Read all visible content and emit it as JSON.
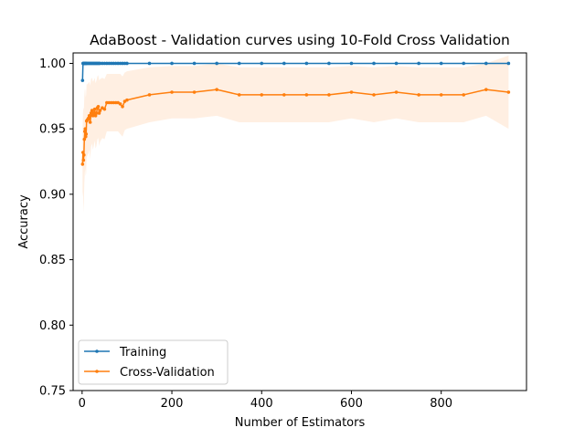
{
  "chart_data": {
    "type": "line",
    "title": "AdaBoost - Validation curves using 10-Fold Cross Validation",
    "xlabel": "Number of Estimators",
    "ylabel": "Accuracy",
    "xlim": [
      -20,
      990
    ],
    "ylim": [
      0.75,
      1.008
    ],
    "xticks": [
      0,
      200,
      400,
      600,
      800
    ],
    "yticks": [
      0.75,
      0.8,
      0.85,
      0.9,
      0.95,
      1.0
    ],
    "ytick_labels": [
      "0.75",
      "0.80",
      "0.85",
      "0.90",
      "0.95",
      "1.00"
    ],
    "grid": false,
    "legend_placement": "lower-left",
    "x": [
      1,
      2,
      3,
      4,
      5,
      6,
      7,
      8,
      9,
      10,
      12,
      14,
      16,
      18,
      20,
      22,
      24,
      26,
      28,
      30,
      32,
      34,
      36,
      38,
      40,
      45,
      50,
      55,
      60,
      65,
      70,
      75,
      80,
      85,
      90,
      95,
      100,
      150,
      200,
      250,
      300,
      350,
      400,
      450,
      500,
      550,
      600,
      650,
      700,
      750,
      800,
      850,
      900,
      950
    ],
    "series": [
      {
        "name": "Training",
        "color": "#1f77b4",
        "values": [
          0.987,
          1.0,
          1.0,
          1.0,
          1.0,
          1.0,
          1.0,
          1.0,
          1.0,
          1.0,
          1.0,
          1.0,
          1.0,
          1.0,
          1.0,
          1.0,
          1.0,
          1.0,
          1.0,
          1.0,
          1.0,
          1.0,
          1.0,
          1.0,
          1.0,
          1.0,
          1.0,
          1.0,
          1.0,
          1.0,
          1.0,
          1.0,
          1.0,
          1.0,
          1.0,
          1.0,
          1.0,
          1.0,
          1.0,
          1.0,
          1.0,
          1.0,
          1.0,
          1.0,
          1.0,
          1.0,
          1.0,
          1.0,
          1.0,
          1.0,
          1.0,
          1.0,
          1.0,
          1.0
        ],
        "std": [
          0.004,
          0,
          0,
          0,
          0,
          0,
          0,
          0,
          0,
          0,
          0,
          0,
          0,
          0,
          0,
          0,
          0,
          0,
          0,
          0,
          0,
          0,
          0,
          0,
          0,
          0,
          0,
          0,
          0,
          0,
          0,
          0,
          0,
          0,
          0,
          0,
          0,
          0,
          0,
          0,
          0,
          0,
          0,
          0,
          0,
          0,
          0,
          0,
          0,
          0,
          0,
          0,
          0,
          0
        ]
      },
      {
        "name": "Cross-Validation",
        "color": "#ff7f0e",
        "values": [
          0.923,
          0.932,
          0.926,
          0.93,
          0.942,
          0.948,
          0.95,
          0.944,
          0.946,
          0.956,
          0.957,
          0.958,
          0.96,
          0.955,
          0.962,
          0.964,
          0.96,
          0.962,
          0.965,
          0.96,
          0.962,
          0.966,
          0.967,
          0.962,
          0.964,
          0.966,
          0.965,
          0.97,
          0.97,
          0.97,
          0.97,
          0.97,
          0.97,
          0.969,
          0.967,
          0.971,
          0.972,
          0.976,
          0.978,
          0.978,
          0.98,
          0.976,
          0.976,
          0.976,
          0.976,
          0.976,
          0.978,
          0.976,
          0.978,
          0.976,
          0.976,
          0.976,
          0.98,
          0.978
        ],
        "std": [
          0.025,
          0.03,
          0.04,
          0.035,
          0.033,
          0.032,
          0.03,
          0.03,
          0.03,
          0.028,
          0.027,
          0.027,
          0.026,
          0.028,
          0.026,
          0.025,
          0.026,
          0.025,
          0.024,
          0.025,
          0.025,
          0.024,
          0.024,
          0.025,
          0.024,
          0.023,
          0.023,
          0.022,
          0.022,
          0.022,
          0.022,
          0.022,
          0.022,
          0.023,
          0.023,
          0.022,
          0.022,
          0.021,
          0.02,
          0.02,
          0.02,
          0.021,
          0.021,
          0.021,
          0.021,
          0.021,
          0.02,
          0.021,
          0.02,
          0.021,
          0.021,
          0.021,
          0.02,
          0.028
        ]
      }
    ]
  }
}
